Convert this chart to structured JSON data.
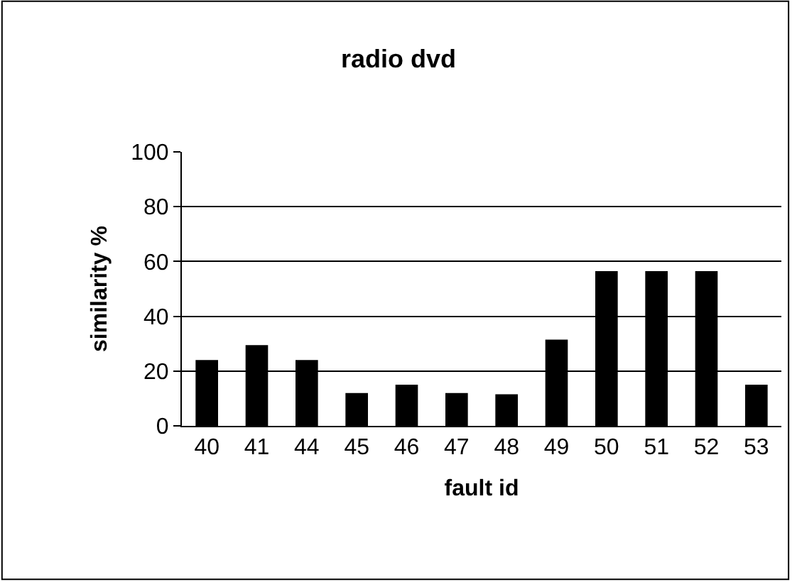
{
  "chart_data": {
    "type": "bar",
    "title": "radio dvd",
    "xlabel": "fault id",
    "ylabel": "similarity %",
    "categories": [
      "40",
      "41",
      "44",
      "45",
      "46",
      "47",
      "48",
      "49",
      "50",
      "51",
      "52",
      "53"
    ],
    "values": [
      24,
      29.5,
      24,
      12,
      15,
      12,
      11.5,
      31.5,
      56.5,
      56.5,
      56.5,
      15
    ],
    "color": "#000000",
    "ylim": [
      0,
      100
    ],
    "yticks": [
      0,
      20,
      40,
      60,
      80,
      100
    ],
    "grid": "y"
  }
}
